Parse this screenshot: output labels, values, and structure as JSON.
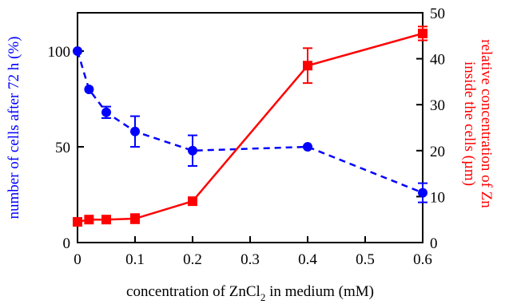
{
  "chart_data": {
    "type": "line",
    "title": "",
    "xlabel": {
      "before": "concentration of ZnCl",
      "subscript": "2",
      "after": " in medium (mM)"
    },
    "ylabel_left": "number of cells after 72 h (%)",
    "ylabel_right_lines": [
      "relative concentration of Zn",
      "inside the cells (µm)"
    ],
    "xlim": [
      0,
      0.6
    ],
    "ylim_left": [
      0,
      120
    ],
    "ylim_right": [
      0,
      50
    ],
    "x_ticks": [
      "0",
      "0.1",
      "0.2",
      "0.3",
      "0.4",
      "0.5",
      "0.6"
    ],
    "x_tick_values": [
      0,
      0.1,
      0.2,
      0.3,
      0.4,
      0.5,
      0.6
    ],
    "y_left_ticks": [
      "0",
      "50",
      "100"
    ],
    "y_left_tick_values": [
      0,
      50,
      100
    ],
    "y_right_ticks": [
      "0",
      "10",
      "20",
      "30",
      "40",
      "50"
    ],
    "y_right_tick_values": [
      0,
      10,
      20,
      30,
      40,
      50
    ],
    "grid": false,
    "series": [
      {
        "axis": "left",
        "color": "#0000ff",
        "line": "dashed",
        "marker": "circle",
        "x": [
          0,
          0.02,
          0.05,
          0.1,
          0.2,
          0.4,
          0.6
        ],
        "y": [
          100,
          80,
          68,
          58,
          48,
          50,
          26
        ],
        "err": [
          0,
          0,
          3,
          8,
          8,
          0,
          5
        ]
      },
      {
        "axis": "right",
        "color": "#ff0000",
        "line": "solid",
        "marker": "square",
        "x": [
          0,
          0.02,
          0.05,
          0.1,
          0.2,
          0.4,
          0.6
        ],
        "y": [
          4.5,
          5,
          5,
          5.2,
          9,
          38.5,
          45.5
        ],
        "err": [
          0,
          0,
          0,
          1,
          0,
          3.8,
          1.5
        ]
      }
    ]
  }
}
